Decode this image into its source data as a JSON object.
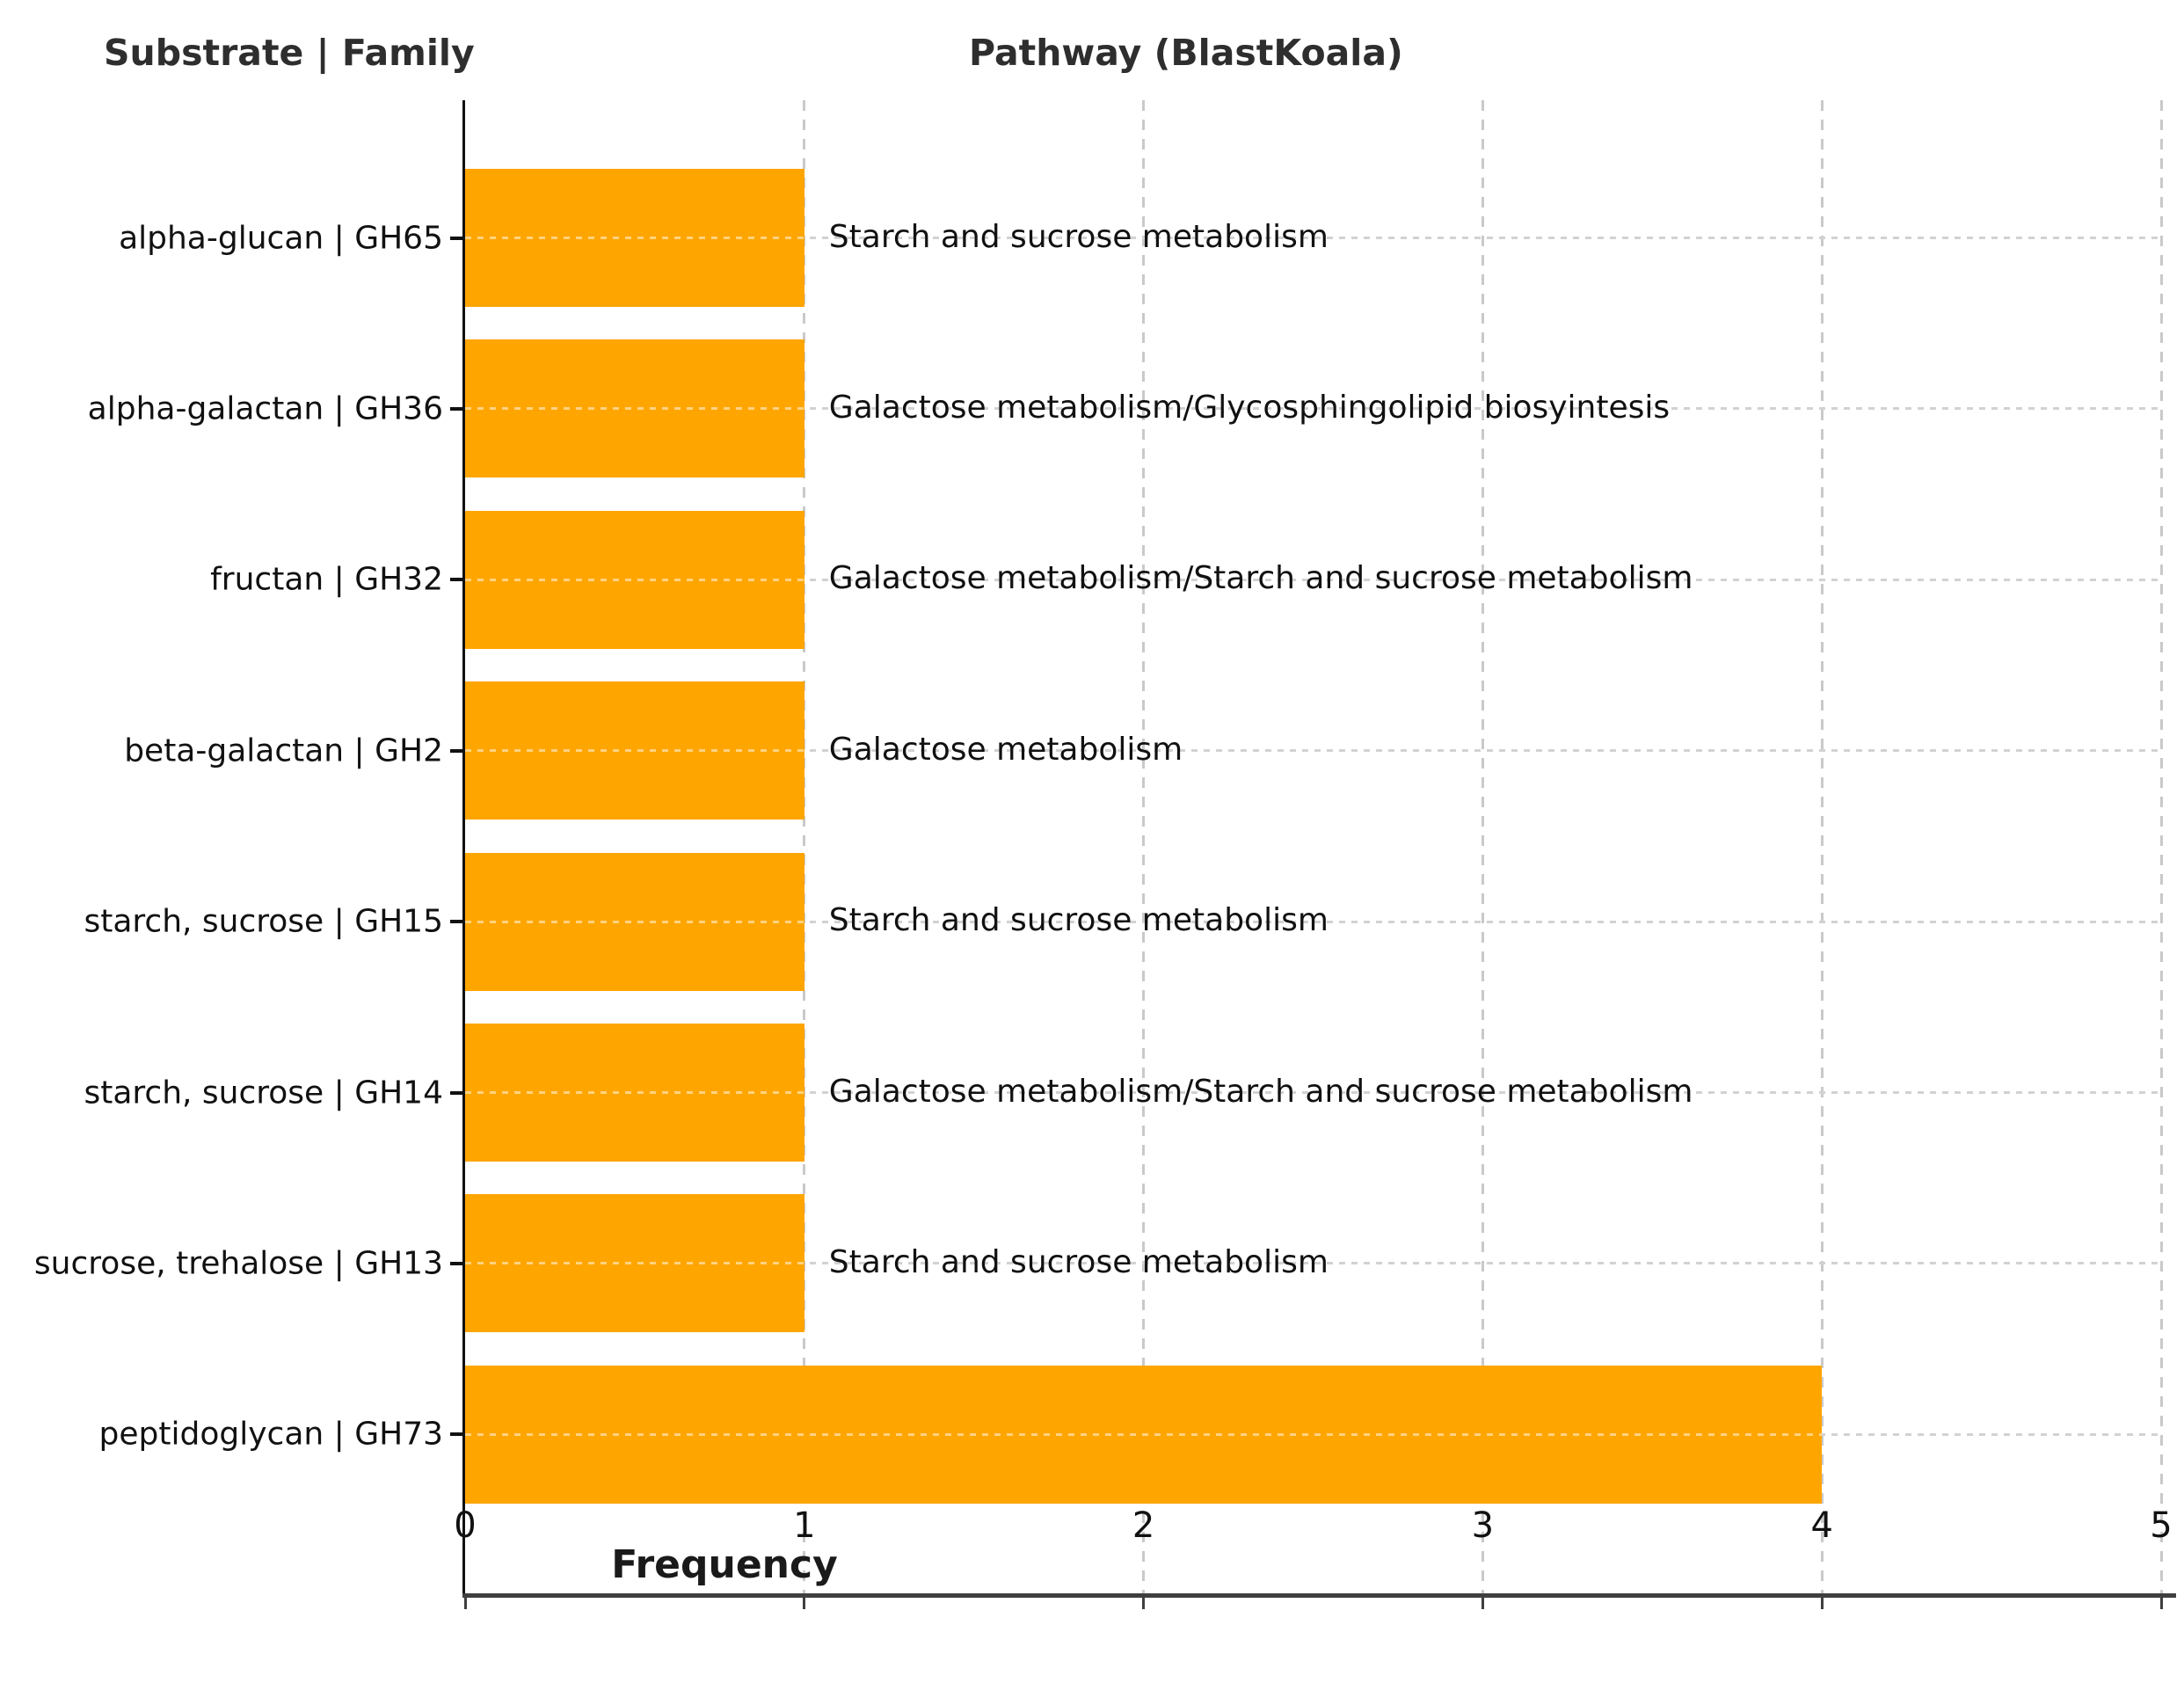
{
  "header": {
    "left_label": "Substrate | Family",
    "right_label": "Pathway (BlastKoala)"
  },
  "chart_data": {
    "type": "bar",
    "orientation": "horizontal",
    "title": "",
    "left_column_header": "Substrate | Family",
    "right_column_header": "Pathway (BlastKoala)",
    "xlabel": "Frequency",
    "ylabel": "",
    "xlim": [
      0,
      5
    ],
    "xticks": [
      "0",
      "1",
      "2",
      "3",
      "4",
      "5"
    ],
    "grid": "dashed vertical gridlines at each integer; dotted horizontal leader line per bar",
    "legend_position": "none",
    "bar_color": "#FFA500",
    "categories": [
      "alpha-glucan | GH65",
      "alpha-galactan | GH36",
      "fructan | GH32",
      "beta-galactan | GH2",
      "starch, sucrose | GH15",
      "starch, sucrose | GH14",
      "sucrose, trehalose | GH13",
      "peptidoglycan | GH73"
    ],
    "values": [
      1,
      1,
      1,
      1,
      1,
      1,
      1,
      4
    ],
    "pathway_annotations": [
      "Starch and sucrose metabolism",
      "Galactose metabolism/Glycosphingolipid biosyintesis",
      "Galactose metabolism/Starch and sucrose metabolism",
      "Galactose metabolism",
      "Starch and sucrose metabolism",
      "Galactose metabolism/Starch and sucrose metabolism",
      "Starch and sucrose metabolism",
      ""
    ]
  },
  "colors": {
    "bar": "#FFA500",
    "axis_spine": "#111111",
    "bottom_spine": "#3f3f3f",
    "gridline": "#c9c9c9",
    "leader_dots": "#d2d2d2",
    "text": "#111111"
  }
}
